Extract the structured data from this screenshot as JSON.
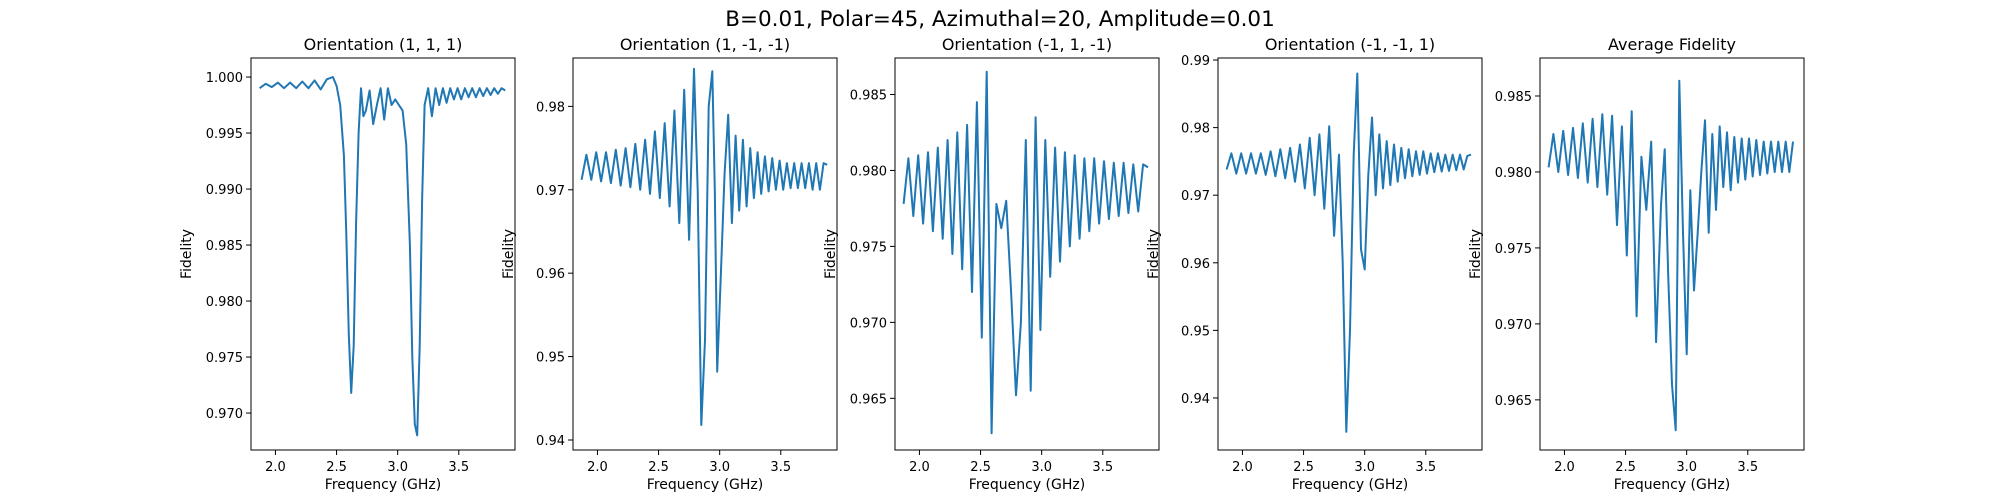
{
  "suptitle": "B=0.01, Polar=45, Azimuthal=20, Amplitude=0.01",
  "chart_data": [
    {
      "type": "line",
      "title": "Orientation (1, 1, 1)",
      "xlabel": "Frequency (GHz)",
      "ylabel": "Fidelity",
      "xlim": [
        1.8,
        3.96
      ],
      "ylim": [
        0.9667,
        1.0017
      ],
      "xticks": [
        "2.0",
        "2.5",
        "3.0",
        "3.5"
      ],
      "xtick_values": [
        2.0,
        2.5,
        3.0,
        3.5
      ],
      "yticks": [
        "0.970",
        "0.975",
        "0.980",
        "0.985",
        "0.990",
        "0.995",
        "1.000"
      ],
      "ytick_values": [
        0.97,
        0.975,
        0.98,
        0.985,
        0.99,
        0.995,
        1.0
      ],
      "x": [
        1.87,
        1.92,
        1.97,
        2.02,
        2.07,
        2.12,
        2.17,
        2.22,
        2.27,
        2.32,
        2.37,
        2.42,
        2.47,
        2.5,
        2.53,
        2.56,
        2.58,
        2.6,
        2.62,
        2.64,
        2.66,
        2.68,
        2.7,
        2.72,
        2.74,
        2.77,
        2.8,
        2.83,
        2.86,
        2.89,
        2.92,
        2.95,
        2.98,
        3.01,
        3.04,
        3.07,
        3.1,
        3.12,
        3.14,
        3.16,
        3.18,
        3.2,
        3.22,
        3.25,
        3.28,
        3.31,
        3.34,
        3.37,
        3.4,
        3.43,
        3.46,
        3.49,
        3.52,
        3.55,
        3.58,
        3.61,
        3.64,
        3.67,
        3.7,
        3.73,
        3.76,
        3.79,
        3.82,
        3.85,
        3.88
      ],
      "y": [
        0.999,
        0.9994,
        0.9991,
        0.9995,
        0.999,
        0.9995,
        0.999,
        0.9996,
        0.999,
        0.9997,
        0.9989,
        0.9998,
        1.0,
        0.9992,
        0.9975,
        0.993,
        0.986,
        0.977,
        0.9718,
        0.976,
        0.987,
        0.995,
        0.999,
        0.9965,
        0.997,
        0.9988,
        0.9958,
        0.9975,
        0.999,
        0.9962,
        0.999,
        0.9975,
        0.998,
        0.9975,
        0.997,
        0.994,
        0.985,
        0.975,
        0.969,
        0.968,
        0.976,
        0.989,
        0.9975,
        0.999,
        0.9965,
        0.999,
        0.9975,
        0.999,
        0.9977,
        0.999,
        0.998,
        0.999,
        0.998,
        0.999,
        0.9982,
        0.999,
        0.9982,
        0.999,
        0.9983,
        0.999,
        0.9984,
        0.999,
        0.9985,
        0.999,
        0.9988
      ]
    },
    {
      "type": "line",
      "title": "Orientation (1, -1, -1)",
      "xlabel": "Frequency (GHz)",
      "ylabel": "Fidelity",
      "xlim": [
        1.8,
        3.96
      ],
      "ylim": [
        0.9388,
        0.9858
      ],
      "xticks": [
        "2.0",
        "2.5",
        "3.0",
        "3.5"
      ],
      "xtick_values": [
        2.0,
        2.5,
        3.0,
        3.5
      ],
      "yticks": [
        "0.94",
        "0.95",
        "0.96",
        "0.97",
        "0.98"
      ],
      "ytick_values": [
        0.94,
        0.95,
        0.96,
        0.97,
        0.98
      ],
      "x": [
        1.87,
        1.91,
        1.95,
        1.99,
        2.03,
        2.07,
        2.11,
        2.15,
        2.19,
        2.23,
        2.27,
        2.31,
        2.35,
        2.39,
        2.43,
        2.47,
        2.51,
        2.55,
        2.59,
        2.63,
        2.67,
        2.71,
        2.75,
        2.79,
        2.82,
        2.85,
        2.88,
        2.91,
        2.94,
        2.96,
        2.98,
        3.01,
        3.04,
        3.07,
        3.1,
        3.13,
        3.16,
        3.19,
        3.22,
        3.25,
        3.28,
        3.31,
        3.34,
        3.37,
        3.4,
        3.43,
        3.46,
        3.49,
        3.52,
        3.55,
        3.58,
        3.61,
        3.64,
        3.67,
        3.7,
        3.73,
        3.76,
        3.79,
        3.82,
        3.85,
        3.88
      ],
      "y": [
        0.9712,
        0.9742,
        0.9712,
        0.9745,
        0.971,
        0.9745,
        0.9708,
        0.9748,
        0.9705,
        0.975,
        0.9703,
        0.9755,
        0.97,
        0.976,
        0.9695,
        0.977,
        0.969,
        0.978,
        0.968,
        0.9795,
        0.966,
        0.982,
        0.964,
        0.9845,
        0.97,
        0.9418,
        0.952,
        0.98,
        0.9842,
        0.97,
        0.9482,
        0.96,
        0.972,
        0.979,
        0.966,
        0.9765,
        0.9675,
        0.976,
        0.968,
        0.975,
        0.969,
        0.9745,
        0.9695,
        0.974,
        0.9698,
        0.9738,
        0.97,
        0.9735,
        0.97,
        0.9732,
        0.9702,
        0.9732,
        0.9702,
        0.9732,
        0.9702,
        0.9732,
        0.97,
        0.9732,
        0.97,
        0.9732,
        0.973
      ]
    },
    {
      "type": "line",
      "title": "Orientation (-1, 1, -1)",
      "xlabel": "Frequency (GHz)",
      "ylabel": "Fidelity",
      "xlim": [
        1.8,
        3.96
      ],
      "ylim": [
        0.9616,
        0.9874
      ],
      "xticks": [
        "2.0",
        "2.5",
        "3.0",
        "3.5"
      ],
      "xtick_values": [
        2.0,
        2.5,
        3.0,
        3.5
      ],
      "yticks": [
        "0.965",
        "0.970",
        "0.975",
        "0.980",
        "0.985"
      ],
      "ytick_values": [
        0.965,
        0.97,
        0.975,
        0.98,
        0.985
      ],
      "x": [
        1.87,
        1.91,
        1.95,
        1.99,
        2.03,
        2.07,
        2.11,
        2.15,
        2.19,
        2.23,
        2.27,
        2.31,
        2.35,
        2.39,
        2.43,
        2.47,
        2.51,
        2.55,
        2.59,
        2.63,
        2.67,
        2.71,
        2.75,
        2.79,
        2.83,
        2.87,
        2.91,
        2.95,
        2.99,
        3.03,
        3.07,
        3.11,
        3.15,
        3.19,
        3.23,
        3.27,
        3.31,
        3.35,
        3.39,
        3.43,
        3.47,
        3.51,
        3.55,
        3.59,
        3.63,
        3.67,
        3.71,
        3.75,
        3.79,
        3.83,
        3.87
      ],
      "y": [
        0.9778,
        0.9808,
        0.977,
        0.981,
        0.9765,
        0.9812,
        0.976,
        0.9815,
        0.9755,
        0.982,
        0.9745,
        0.9825,
        0.9735,
        0.983,
        0.972,
        0.9845,
        0.969,
        0.9865,
        0.9627,
        0.9778,
        0.9762,
        0.978,
        0.972,
        0.9652,
        0.97,
        0.982,
        0.9655,
        0.9835,
        0.9695,
        0.982,
        0.973,
        0.9815,
        0.974,
        0.9812,
        0.975,
        0.981,
        0.9755,
        0.9808,
        0.976,
        0.9808,
        0.9765,
        0.9806,
        0.9768,
        0.9805,
        0.977,
        0.9805,
        0.9772,
        0.9804,
        0.9773,
        0.9804,
        0.9802
      ]
    },
    {
      "type": "line",
      "title": "Orientation (-1, -1, 1)",
      "xlabel": "Frequency (GHz)",
      "ylabel": "Fidelity",
      "xlim": [
        1.8,
        3.96
      ],
      "ylim": [
        0.9323,
        0.9903
      ],
      "xticks": [
        "2.0",
        "2.5",
        "3.0",
        "3.5"
      ],
      "xtick_values": [
        2.0,
        2.5,
        3.0,
        3.5
      ],
      "yticks": [
        "0.94",
        "0.95",
        "0.96",
        "0.97",
        "0.98",
        "0.99"
      ],
      "ytick_values": [
        0.94,
        0.95,
        0.96,
        0.97,
        0.98,
        0.99
      ],
      "x": [
        1.87,
        1.91,
        1.95,
        1.99,
        2.03,
        2.07,
        2.11,
        2.15,
        2.19,
        2.23,
        2.27,
        2.31,
        2.35,
        2.39,
        2.43,
        2.47,
        2.51,
        2.55,
        2.59,
        2.63,
        2.67,
        2.71,
        2.75,
        2.79,
        2.82,
        2.85,
        2.88,
        2.91,
        2.94,
        2.97,
        3.0,
        3.03,
        3.06,
        3.09,
        3.12,
        3.15,
        3.18,
        3.21,
        3.24,
        3.27,
        3.3,
        3.33,
        3.36,
        3.39,
        3.42,
        3.45,
        3.48,
        3.51,
        3.54,
        3.57,
        3.6,
        3.63,
        3.66,
        3.69,
        3.72,
        3.75,
        3.78,
        3.81,
        3.84,
        3.87
      ],
      "y": [
        0.9738,
        0.9762,
        0.9732,
        0.9762,
        0.9732,
        0.9762,
        0.9732,
        0.9762,
        0.973,
        0.9765,
        0.9728,
        0.9768,
        0.9725,
        0.977,
        0.972,
        0.9775,
        0.971,
        0.9785,
        0.97,
        0.979,
        0.968,
        0.9802,
        0.964,
        0.976,
        0.96,
        0.935,
        0.95,
        0.976,
        0.988,
        0.962,
        0.959,
        0.973,
        0.9815,
        0.97,
        0.979,
        0.971,
        0.978,
        0.9715,
        0.9775,
        0.972,
        0.977,
        0.9725,
        0.9768,
        0.9728,
        0.9765,
        0.973,
        0.9765,
        0.9732,
        0.9762,
        0.9734,
        0.9762,
        0.9735,
        0.976,
        0.9736,
        0.976,
        0.9737,
        0.976,
        0.9738,
        0.9758,
        0.976
      ]
    },
    {
      "type": "line",
      "title": "Average Fidelity",
      "xlabel": "Frequency (GHz)",
      "ylabel": "Fidelity",
      "xlim": [
        1.8,
        3.96
      ],
      "ylim": [
        0.9617,
        0.9875
      ],
      "xticks": [
        "2.0",
        "2.5",
        "3.0",
        "3.5"
      ],
      "xtick_values": [
        2.0,
        2.5,
        3.0,
        3.5
      ],
      "yticks": [
        "0.965",
        "0.970",
        "0.975",
        "0.980",
        "0.985"
      ],
      "ytick_values": [
        0.965,
        0.97,
        0.975,
        0.98,
        0.985
      ],
      "x": [
        1.87,
        1.91,
        1.95,
        1.99,
        2.03,
        2.07,
        2.11,
        2.15,
        2.19,
        2.23,
        2.27,
        2.31,
        2.35,
        2.39,
        2.43,
        2.47,
        2.51,
        2.55,
        2.59,
        2.63,
        2.67,
        2.71,
        2.75,
        2.79,
        2.82,
        2.85,
        2.88,
        2.91,
        2.94,
        2.97,
        3.0,
        3.03,
        3.06,
        3.09,
        3.12,
        3.15,
        3.18,
        3.21,
        3.24,
        3.27,
        3.3,
        3.33,
        3.36,
        3.39,
        3.42,
        3.45,
        3.48,
        3.51,
        3.54,
        3.57,
        3.6,
        3.63,
        3.66,
        3.69,
        3.72,
        3.75,
        3.78,
        3.81,
        3.84,
        3.87
      ],
      "y": [
        0.9803,
        0.9825,
        0.98,
        0.9827,
        0.9798,
        0.9829,
        0.9796,
        0.9832,
        0.9793,
        0.9835,
        0.979,
        0.9838,
        0.9785,
        0.9837,
        0.9765,
        0.983,
        0.9745,
        0.984,
        0.9705,
        0.981,
        0.9775,
        0.982,
        0.9688,
        0.9778,
        0.9815,
        0.973,
        0.966,
        0.963,
        0.986,
        0.976,
        0.968,
        0.9788,
        0.9722,
        0.976,
        0.98,
        0.9834,
        0.976,
        0.9825,
        0.9775,
        0.983,
        0.979,
        0.9826,
        0.9788,
        0.9823,
        0.9793,
        0.9822,
        0.9795,
        0.9822,
        0.9797,
        0.9821,
        0.9798,
        0.982,
        0.9799,
        0.982,
        0.98,
        0.982,
        0.98,
        0.982,
        0.98,
        0.982
      ]
    }
  ]
}
